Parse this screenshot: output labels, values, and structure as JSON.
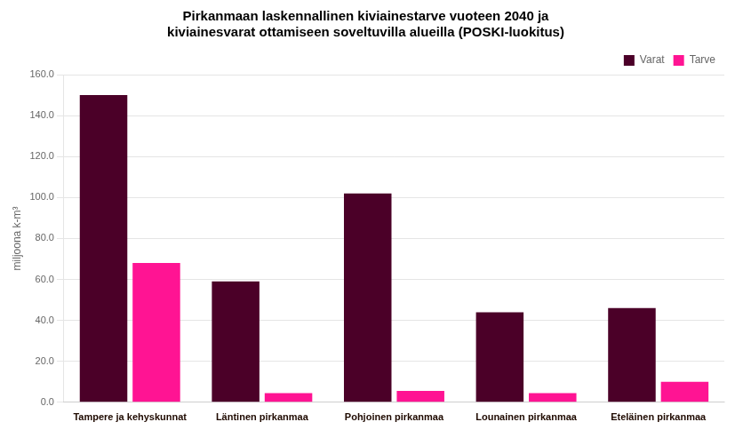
{
  "chart_data": {
    "type": "bar",
    "title": "Pirkanmaan laskennallinen kiviainestarve vuoteen 2040 ja\nkiviainesvarat ottamiseen soveltuvilla alueilla (POSKI-luokitus)",
    "categories": [
      "Tampere ja kehyskunnat",
      "Läntinen pirkanmaa",
      "Pohjoinen pirkanmaa",
      "Lounainen pirkanmaa",
      "Eteläinen pirkanmaa"
    ],
    "series": [
      {
        "name": "Varat",
        "color": "#4B0028",
        "values": [
          150,
          59,
          102,
          44,
          46
        ]
      },
      {
        "name": "Tarve",
        "color": "#FF1493",
        "values": [
          68,
          4.5,
          5.5,
          4.5,
          10
        ]
      }
    ],
    "ylabel": "miljoona k-m³",
    "ylim": [
      0,
      160
    ],
    "yticks": [
      {
        "value": 0,
        "label": "0.0"
      },
      {
        "value": 20,
        "label": "20.0"
      },
      {
        "value": 40,
        "label": "40.0"
      },
      {
        "value": 60,
        "label": "60.0"
      },
      {
        "value": 80,
        "label": "80.0"
      },
      {
        "value": 100,
        "label": "100.0"
      },
      {
        "value": 120,
        "label": "120.0"
      },
      {
        "value": 140,
        "label": "140.0"
      },
      {
        "value": 160,
        "label": "160.0"
      }
    ],
    "grid": true,
    "legend": "upper right"
  }
}
